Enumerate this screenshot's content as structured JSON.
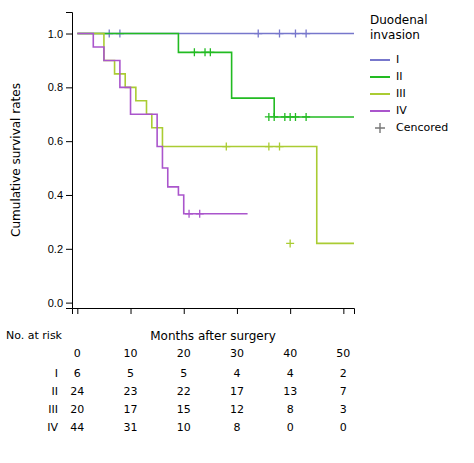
{
  "chart_data": {
    "type": "step",
    "ylabel": "Cumulative survival rates",
    "xlabel": "Months after surgery",
    "xlim": [
      -1,
      52
    ],
    "ylim": [
      -0.02,
      1.08
    ],
    "yticks": [
      {
        "value": 0.0,
        "label": "0.0"
      },
      0.2,
      0.4,
      0.6,
      0.8,
      {
        "value": 1.0,
        "label": "1.0"
      }
    ],
    "xticks": [
      0,
      10,
      20,
      30,
      40,
      50
    ],
    "tick_labels": "y",
    "legend": "right",
    "legend_title": "Duodenal\ninvasion",
    "series": [
      {
        "name": "I",
        "color": "#7777cc",
        "x": [
          0,
          52
        ],
        "values": [
          1.0,
          1.0
        ],
        "censor_x": [
          6,
          8,
          34,
          38,
          41,
          43
        ],
        "censor_y": [
          1.0,
          1.0,
          1.0,
          1.0,
          1.0,
          1.0
        ]
      },
      {
        "name": "II",
        "color": "#22bb22",
        "x": [
          0,
          18,
          19,
          20,
          29,
          36,
          37,
          52
        ],
        "values": [
          1.0,
          1.0,
          0.93,
          0.93,
          0.76,
          0.76,
          0.69,
          0.69
        ],
        "censor_x": [
          22,
          24,
          25,
          36,
          37,
          39,
          40,
          41,
          43
        ],
        "censor_y": [
          0.93,
          0.93,
          0.93,
          0.69,
          0.69,
          0.69,
          0.69,
          0.69,
          0.69
        ]
      },
      {
        "name": "III",
        "color": "#aacc33",
        "x": [
          0,
          5,
          7,
          9,
          11,
          13,
          14,
          16,
          36,
          45,
          52
        ],
        "values": [
          1.0,
          0.9,
          0.85,
          0.8,
          0.75,
          0.7,
          0.65,
          0.58,
          0.58,
          0.22,
          0.22
        ],
        "censor_x": [
          28,
          36,
          38,
          40
        ],
        "censor_y": [
          0.58,
          0.58,
          0.58,
          0.22
        ]
      },
      {
        "name": "IV",
        "color": "#aa55cc",
        "x": [
          0,
          3,
          5,
          8,
          10,
          15,
          16,
          17,
          19,
          20,
          32
        ],
        "values": [
          1.0,
          0.95,
          0.9,
          0.8,
          0.7,
          0.58,
          0.5,
          0.43,
          0.4,
          0.33,
          0.33
        ],
        "censor_x": [
          21,
          23
        ],
        "censor_y": [
          0.33,
          0.33
        ]
      }
    ],
    "censor_legend": {
      "name": "Cencored",
      "color": "#777777",
      "marker": "plus"
    },
    "risk_table": {
      "title": "No. at risk",
      "x": [
        0,
        10,
        20,
        30,
        40,
        50
      ],
      "rows": [
        {
          "name": "I",
          "values": [
            6,
            5,
            5,
            4,
            4,
            2
          ]
        },
        {
          "name": "II",
          "values": [
            24,
            23,
            22,
            17,
            13,
            7
          ]
        },
        {
          "name": "III",
          "values": [
            20,
            17,
            15,
            12,
            8,
            3
          ]
        },
        {
          "name": "IV",
          "values": [
            44,
            31,
            10,
            8,
            0,
            0
          ]
        }
      ]
    }
  }
}
